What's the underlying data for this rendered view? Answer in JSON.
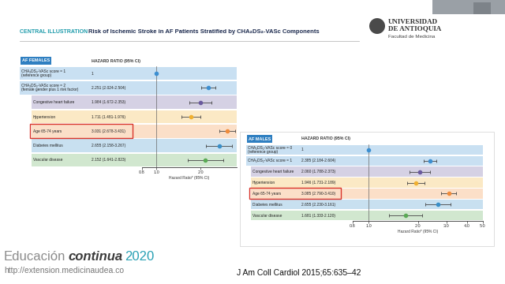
{
  "chart_data": [
    {
      "type": "forest",
      "title": "AF FEMALES",
      "header": "HAZARD RATIO (95% CI)",
      "xlabel": "Hazard Ratio* (95% CI)",
      "log": "x",
      "marker": "o",
      "categories": [
        "CHA₂DS₂-VASc score = 1\n(reference group)",
        "CHA₂DS₂-VASc score = 2\n(female gender plus 1 risk factor)",
        "Congestive heart failure",
        "Hypertension",
        "Age 65-74 years",
        "Diabetes mellitus",
        "Vascular disease"
      ],
      "values": [
        1,
        2.251,
        1.984,
        1.711,
        3.031,
        2.655,
        2.152
      ],
      "ci_low": [
        null,
        2.024,
        1.672,
        1.481,
        2.678,
        2.158,
        1.641
      ],
      "ci_high": [
        null,
        2.504,
        2.353,
        1.976,
        3.431,
        3.267,
        2.823
      ],
      "value_labels": [
        "1",
        "2.251 (2.024-2.504)",
        "1.984 (1.672-2.353)",
        "1.711 (1.481-1.976)",
        "3.031 (2.678-3.431)",
        "2.655 (2.158-3.267)",
        "2.152 (1.641-2.823)"
      ],
      "colors": [
        "#3d8fd1",
        "#3d8fd1",
        "#6a5a9e",
        "#f0b030",
        "#f08c3c",
        "#3a8fc8",
        "#5aaa55"
      ],
      "xlim": [
        0.8,
        3.5
      ],
      "xticks": [
        0.8,
        {
          "value": 1,
          "label": "1.0"
        },
        {
          "value": 2,
          "label": "2.0"
        }
      ]
    },
    {
      "type": "forest",
      "title": "AF MALES",
      "header": "HAZARD RATIO (95% CI)",
      "xlabel": "Hazard Ratio* (95% CI)",
      "log": "x",
      "marker": "o",
      "categories": [
        "CHA₂DS₂-VASc score = 0\n(reference group)",
        "CHA₂DS₂-VASc score = 1",
        "Congestive heart failure",
        "Hypertension",
        "Age 65-74 years",
        "Diabetes mellitus",
        "Vascular disease"
      ],
      "values": [
        1,
        2.385,
        2.06,
        1.946,
        3.085,
        2.655,
        1.681
      ],
      "ci_low": [
        null,
        2.184,
        1.788,
        1.731,
        2.79,
        2.23,
        1.333
      ],
      "ci_high": [
        null,
        2.604,
        2.373,
        2.189,
        3.41,
        3.161,
        2.12
      ],
      "value_labels": [
        "1",
        "2.385 (2.184-2.604)",
        "2.060 (1.788-2.373)",
        "1.946 (1.731-2.189)",
        "3.085 (2.790-3.410)",
        "2.655 (2.230-3.161)",
        "1.681 (1.333-2.120)"
      ],
      "colors": [
        "#3d8fd1",
        "#3d8fd1",
        "#6a5a9e",
        "#f0b030",
        "#f08c3c",
        "#3a8fc8",
        "#5aaa55"
      ],
      "xlim": [
        0.8,
        5.0
      ],
      "xticks": [
        0.8,
        {
          "value": 1,
          "label": "1.0"
        },
        {
          "value": 2,
          "label": "2.0"
        },
        {
          "value": 3,
          "label": "3.0"
        },
        {
          "value": 4,
          "label": "4.0"
        },
        {
          "value": 5,
          "label": "5.0"
        }
      ]
    }
  ],
  "slide": {
    "kicker": "CENTRAL ILLUSTRATION",
    "title": "Risk of Ischemic Stroke in AF Patients Stratified by CHA₂DS₂-VASc Components",
    "institution": "UNIVERSIDAD\nDE ANTIOQUIA",
    "faculty": "Facultad de Medicina",
    "brand": [
      "Educación",
      "continua",
      "2020"
    ],
    "url": "http://extension.medicinaudea.co",
    "citation": "J Am Coll Cardiol 2015;65:635–42"
  }
}
